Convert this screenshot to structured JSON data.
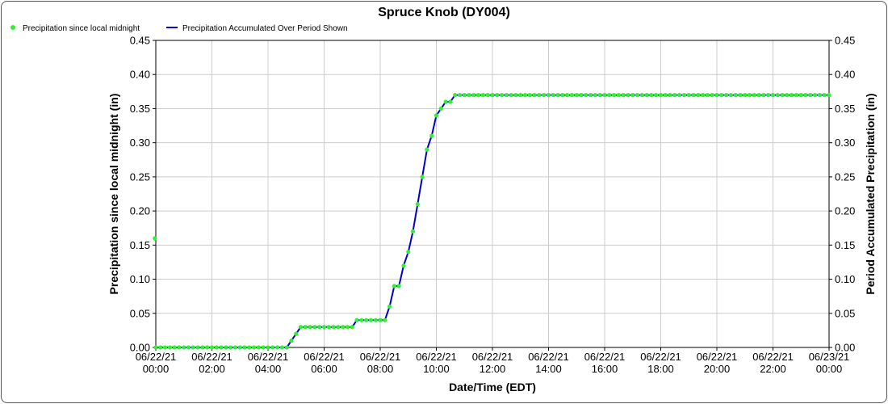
{
  "chart_data": {
    "type": "line",
    "title": "Spruce Knob (DY004)",
    "xlabel": "Date/Time (EDT)",
    "ylabel_left": "Precipitation since local midnight (in)",
    "ylabel_right": "Period Accumulated Precipitation (in)",
    "ylim": [
      0,
      0.45
    ],
    "y_ticks": [
      "0.00",
      "0.05",
      "0.10",
      "0.15",
      "0.20",
      "0.25",
      "0.30",
      "0.35",
      "0.40",
      "0.45"
    ],
    "x_range_hours": [
      0,
      24
    ],
    "x_ticks": [
      {
        "date": "06/22/21",
        "time": "00:00"
      },
      {
        "date": "06/22/21",
        "time": "02:00"
      },
      {
        "date": "06/22/21",
        "time": "04:00"
      },
      {
        "date": "06/22/21",
        "time": "06:00"
      },
      {
        "date": "06/22/21",
        "time": "08:00"
      },
      {
        "date": "06/22/21",
        "time": "10:00"
      },
      {
        "date": "06/22/21",
        "time": "12:00"
      },
      {
        "date": "06/22/21",
        "time": "14:00"
      },
      {
        "date": "06/22/21",
        "time": "16:00"
      },
      {
        "date": "06/22/21",
        "time": "18:00"
      },
      {
        "date": "06/22/21",
        "time": "20:00"
      },
      {
        "date": "06/22/21",
        "time": "22:00"
      },
      {
        "date": "06/23/21",
        "time": "00:00"
      }
    ],
    "grid": true,
    "legend_position": "top-left",
    "series": [
      {
        "name": "Precipitation since local midnight",
        "kind": "points",
        "color": "#33ee33",
        "outlier_point": {
          "time": "06/21/21 23:58",
          "value": 0.16
        },
        "points": [
          [
            "00:00",
            0.0
          ],
          [
            "00:10",
            0.0
          ],
          [
            "00:20",
            0.0
          ],
          [
            "00:30",
            0.0
          ],
          [
            "00:40",
            0.0
          ],
          [
            "00:50",
            0.0
          ],
          [
            "01:00",
            0.0
          ],
          [
            "01:10",
            0.0
          ],
          [
            "01:20",
            0.0
          ],
          [
            "01:30",
            0.0
          ],
          [
            "01:40",
            0.0
          ],
          [
            "01:50",
            0.0
          ],
          [
            "02:00",
            0.0
          ],
          [
            "02:10",
            0.0
          ],
          [
            "02:20",
            0.0
          ],
          [
            "02:30",
            0.0
          ],
          [
            "02:40",
            0.0
          ],
          [
            "02:50",
            0.0
          ],
          [
            "03:00",
            0.0
          ],
          [
            "03:10",
            0.0
          ],
          [
            "03:20",
            0.0
          ],
          [
            "03:30",
            0.0
          ],
          [
            "03:40",
            0.0
          ],
          [
            "03:50",
            0.0
          ],
          [
            "04:00",
            0.0
          ],
          [
            "04:10",
            0.0
          ],
          [
            "04:20",
            0.0
          ],
          [
            "04:30",
            0.0
          ],
          [
            "04:40",
            0.0
          ],
          [
            "04:50",
            0.01
          ],
          [
            "05:00",
            0.02
          ],
          [
            "05:10",
            0.03
          ],
          [
            "05:20",
            0.03
          ],
          [
            "05:30",
            0.03
          ],
          [
            "05:40",
            0.03
          ],
          [
            "05:50",
            0.03
          ],
          [
            "06:00",
            0.03
          ],
          [
            "06:10",
            0.03
          ],
          [
            "06:20",
            0.03
          ],
          [
            "06:30",
            0.03
          ],
          [
            "06:40",
            0.03
          ],
          [
            "06:50",
            0.03
          ],
          [
            "07:00",
            0.03
          ],
          [
            "07:10",
            0.04
          ],
          [
            "07:20",
            0.04
          ],
          [
            "07:30",
            0.04
          ],
          [
            "07:40",
            0.04
          ],
          [
            "07:50",
            0.04
          ],
          [
            "08:00",
            0.04
          ],
          [
            "08:10",
            0.04
          ],
          [
            "08:20",
            0.06
          ],
          [
            "08:30",
            0.09
          ],
          [
            "08:40",
            0.09
          ],
          [
            "08:50",
            0.12
          ],
          [
            "09:00",
            0.14
          ],
          [
            "09:10",
            0.17
          ],
          [
            "09:20",
            0.21
          ],
          [
            "09:30",
            0.25
          ],
          [
            "09:40",
            0.29
          ],
          [
            "09:50",
            0.31
          ],
          [
            "10:00",
            0.34
          ],
          [
            "10:10",
            0.35
          ],
          [
            "10:20",
            0.36
          ],
          [
            "10:30",
            0.36
          ],
          [
            "10:40",
            0.37
          ],
          [
            "10:50",
            0.37
          ],
          [
            "11:00",
            0.37
          ],
          [
            "11:10",
            0.37
          ],
          [
            "11:20",
            0.37
          ],
          [
            "11:30",
            0.37
          ],
          [
            "11:40",
            0.37
          ],
          [
            "11:50",
            0.37
          ],
          [
            "12:00",
            0.37
          ],
          [
            "12:10",
            0.37
          ],
          [
            "12:20",
            0.37
          ],
          [
            "12:30",
            0.37
          ],
          [
            "12:40",
            0.37
          ],
          [
            "12:50",
            0.37
          ],
          [
            "13:00",
            0.37
          ],
          [
            "13:10",
            0.37
          ],
          [
            "13:20",
            0.37
          ],
          [
            "13:30",
            0.37
          ],
          [
            "13:40",
            0.37
          ],
          [
            "13:50",
            0.37
          ],
          [
            "14:00",
            0.37
          ],
          [
            "14:10",
            0.37
          ],
          [
            "14:20",
            0.37
          ],
          [
            "14:30",
            0.37
          ],
          [
            "14:40",
            0.37
          ],
          [
            "14:50",
            0.37
          ],
          [
            "15:00",
            0.37
          ],
          [
            "15:10",
            0.37
          ],
          [
            "15:20",
            0.37
          ],
          [
            "15:30",
            0.37
          ],
          [
            "15:40",
            0.37
          ],
          [
            "15:50",
            0.37
          ],
          [
            "16:00",
            0.37
          ],
          [
            "16:10",
            0.37
          ],
          [
            "16:20",
            0.37
          ],
          [
            "16:30",
            0.37
          ],
          [
            "16:40",
            0.37
          ],
          [
            "16:50",
            0.37
          ],
          [
            "17:00",
            0.37
          ],
          [
            "17:10",
            0.37
          ],
          [
            "17:20",
            0.37
          ],
          [
            "17:30",
            0.37
          ],
          [
            "17:40",
            0.37
          ],
          [
            "17:50",
            0.37
          ],
          [
            "18:00",
            0.37
          ],
          [
            "18:10",
            0.37
          ],
          [
            "18:20",
            0.37
          ],
          [
            "18:30",
            0.37
          ],
          [
            "18:40",
            0.37
          ],
          [
            "18:50",
            0.37
          ],
          [
            "19:00",
            0.37
          ],
          [
            "19:10",
            0.37
          ],
          [
            "19:20",
            0.37
          ],
          [
            "19:30",
            0.37
          ],
          [
            "19:40",
            0.37
          ],
          [
            "19:50",
            0.37
          ],
          [
            "20:00",
            0.37
          ],
          [
            "20:10",
            0.37
          ],
          [
            "20:20",
            0.37
          ],
          [
            "20:30",
            0.37
          ],
          [
            "20:40",
            0.37
          ],
          [
            "20:50",
            0.37
          ],
          [
            "21:00",
            0.37
          ],
          [
            "21:10",
            0.37
          ],
          [
            "21:20",
            0.37
          ],
          [
            "21:30",
            0.37
          ],
          [
            "21:40",
            0.37
          ],
          [
            "21:50",
            0.37
          ],
          [
            "22:00",
            0.37
          ],
          [
            "22:10",
            0.37
          ],
          [
            "22:20",
            0.37
          ],
          [
            "22:30",
            0.37
          ],
          [
            "22:40",
            0.37
          ],
          [
            "22:50",
            0.37
          ],
          [
            "23:00",
            0.37
          ],
          [
            "23:10",
            0.37
          ],
          [
            "23:20",
            0.37
          ],
          [
            "23:30",
            0.37
          ],
          [
            "23:40",
            0.37
          ],
          [
            "23:50",
            0.37
          ],
          [
            "24:00",
            0.37
          ]
        ]
      },
      {
        "name": "Precipitation Accumulated Over Period Shown",
        "kind": "line",
        "color": "#0000cc",
        "points": [
          [
            "00:00",
            0.0
          ],
          [
            "04:40",
            0.0
          ],
          [
            "04:50",
            0.01
          ],
          [
            "05:00",
            0.02
          ],
          [
            "05:10",
            0.03
          ],
          [
            "07:00",
            0.03
          ],
          [
            "07:10",
            0.04
          ],
          [
            "08:10",
            0.04
          ],
          [
            "08:20",
            0.06
          ],
          [
            "08:30",
            0.09
          ],
          [
            "08:40",
            0.09
          ],
          [
            "08:50",
            0.12
          ],
          [
            "09:00",
            0.14
          ],
          [
            "09:10",
            0.17
          ],
          [
            "09:20",
            0.21
          ],
          [
            "09:30",
            0.25
          ],
          [
            "09:40",
            0.29
          ],
          [
            "09:50",
            0.31
          ],
          [
            "10:00",
            0.34
          ],
          [
            "10:10",
            0.35
          ],
          [
            "10:20",
            0.36
          ],
          [
            "10:30",
            0.36
          ],
          [
            "10:40",
            0.37
          ],
          [
            "24:00",
            0.37
          ]
        ]
      }
    ]
  }
}
